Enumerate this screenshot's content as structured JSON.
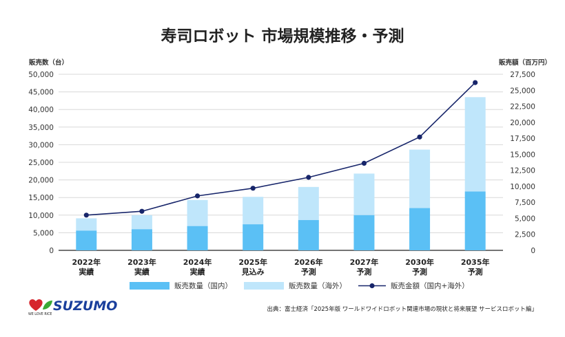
{
  "chart_data": {
    "type": "bar",
    "title": "寿司ロボット 市場規模推移・予測",
    "ylabel_left": "販売数（台）",
    "ylabel_right": "販売額（百万円）",
    "ylim_left": [
      0,
      50000
    ],
    "ylim_right": [
      0,
      27500
    ],
    "left_ticks": [
      "0",
      "5,000",
      "10,000",
      "15,000",
      "20,000",
      "25,000",
      "30,000",
      "35,000",
      "40,000",
      "45,000",
      "50,000"
    ],
    "right_ticks": [
      "0",
      "2,500",
      "5,000",
      "7,500",
      "10,000",
      "12,500",
      "15,000",
      "17,500",
      "20,000",
      "22,500",
      "25,000",
      "27,500"
    ],
    "categories": [
      [
        "2022年",
        "実績"
      ],
      [
        "2023年",
        "実績"
      ],
      [
        "2024年",
        "実績"
      ],
      [
        "2025年",
        "見込み"
      ],
      [
        "2026年",
        "予測"
      ],
      [
        "2027年",
        "予測"
      ],
      [
        "2030年",
        "予測"
      ],
      [
        "2035年",
        "予測"
      ]
    ],
    "grid": true,
    "stacked": true,
    "series": [
      {
        "name": "販売数量（国内）",
        "kind": "bar",
        "axis": "left",
        "color": "#5bc0f5",
        "values": [
          5600,
          6000,
          6900,
          7400,
          8600,
          10000,
          12000,
          16700
        ]
      },
      {
        "name": "販売数量（海外）",
        "kind": "bar",
        "axis": "left",
        "color": "#bfe6fb",
        "values": [
          3500,
          4000,
          7400,
          7800,
          9400,
          11800,
          16600,
          26800
        ]
      },
      {
        "name": "販売金額（国内+海外）",
        "kind": "line",
        "axis": "right",
        "color": "#17256a",
        "values": [
          5500,
          6100,
          8500,
          9700,
          11400,
          13600,
          17700,
          26200
        ]
      }
    ],
    "legend_position": "bottom"
  },
  "source": "出典：富士経済「2025年版 ワールドワイドロボット関連市場の現状と将来展望 サービスロボット編」",
  "logo": {
    "tagline": "WE LOVE RICE",
    "brand": "SUZUMO"
  },
  "colors": {
    "grid": "#d8d8d8",
    "axis": "#222222",
    "brand_blue": "#1a3f9c",
    "logo_red": "#d6262e",
    "logo_green": "#3aa935"
  }
}
